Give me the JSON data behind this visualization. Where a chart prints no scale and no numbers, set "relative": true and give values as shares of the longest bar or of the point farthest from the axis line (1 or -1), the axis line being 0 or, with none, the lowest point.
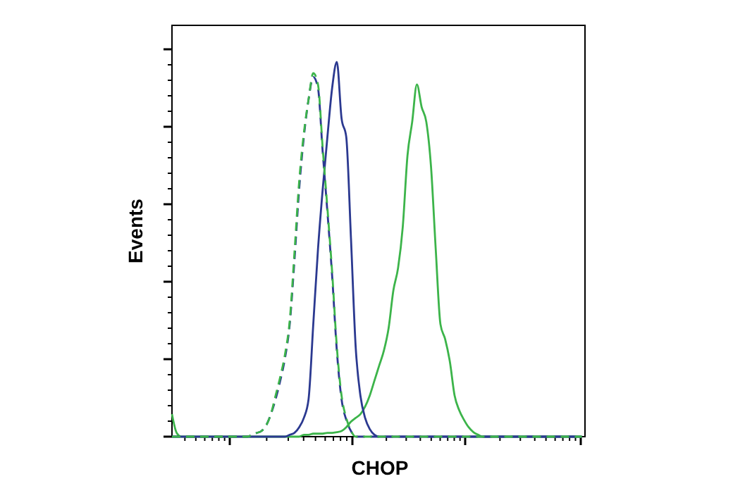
{
  "chart_data": {
    "type": "line",
    "relative": true,
    "xlabel": "CHOP",
    "ylabel": "Events",
    "line_style": "solid",
    "categories": [
      null,
      null,
      null,
      null,
      null,
      null,
      null,
      null,
      null,
      null,
      null,
      null,
      null,
      null,
      null,
      null,
      null,
      null,
      null,
      null,
      null,
      null,
      null,
      null,
      null,
      null,
      null,
      null,
      null,
      null,
      null,
      null,
      null,
      null,
      null,
      null,
      null,
      null,
      null,
      null,
      null,
      null,
      null,
      null,
      null,
      null,
      null,
      null,
      null,
      null,
      null,
      null,
      null,
      null,
      null,
      null,
      null,
      null,
      null,
      null,
      null,
      null,
      null,
      null,
      null,
      null,
      null,
      null,
      null,
      null,
      null,
      null,
      null,
      null,
      null,
      null,
      null,
      null,
      null,
      null,
      null,
      null,
      null,
      null,
      null,
      null,
      null,
      null
    ],
    "series": [
      {
        "color": "#3cb44a",
        "values": [
          0.06,
          0.01,
          0,
          0,
          0,
          0,
          0,
          0,
          0,
          0,
          0,
          0,
          0,
          0,
          0,
          0,
          0,
          0,
          0,
          0,
          0,
          0,
          0,
          0,
          0,
          0,
          0,
          0,
          0.005,
          0.005,
          0.008,
          0.008,
          0.008,
          0.01,
          0.01,
          0.012,
          0.015,
          0.025,
          0.04,
          0.05,
          0.06,
          0.08,
          0.11,
          0.15,
          0.19,
          0.23,
          0.29,
          0.39,
          0.45,
          0.56,
          0.75,
          0.84,
          0.94,
          0.88,
          0.84,
          0.72,
          0.5,
          0.3,
          0.26,
          0.2,
          0.11,
          0.07,
          0.045,
          0.025,
          0.012,
          0.005,
          0,
          0,
          0,
          0,
          0,
          0,
          0,
          0,
          0,
          0,
          0,
          0,
          0,
          0,
          0,
          0,
          0,
          0,
          0,
          0,
          0,
          0
        ]
      },
      {
        "color": "#2b3990",
        "values": [
          0,
          0,
          0,
          0,
          0,
          0,
          0,
          0,
          0,
          0,
          0,
          0,
          0,
          0,
          0,
          0,
          0,
          0,
          0,
          0,
          0,
          0,
          0,
          0,
          0,
          0.005,
          0.01,
          0.025,
          0.05,
          0.1,
          0.3,
          0.5,
          0.66,
          0.8,
          0.93,
          1,
          0.85,
          0.8,
          0.53,
          0.24,
          0.11,
          0.05,
          0.02,
          0.005,
          0,
          0,
          0,
          0,
          0,
          0,
          0,
          0,
          0,
          0,
          0,
          0,
          0,
          0,
          0,
          0,
          0,
          0,
          0,
          0,
          0,
          0,
          0,
          0,
          0,
          0,
          0,
          0,
          0,
          0,
          0,
          0,
          0,
          0,
          0,
          0,
          0,
          0,
          0,
          0,
          0,
          0,
          0,
          0
        ]
      },
      {
        "color": "#2b3990",
        "line_style": "dashed",
        "values": [
          0,
          0,
          0,
          0,
          0,
          0,
          0,
          0,
          0,
          0,
          0,
          0,
          0,
          0,
          0,
          0,
          0,
          0.005,
          0.01,
          0.015,
          0.03,
          0.06,
          0.1,
          0.15,
          0.21,
          0.3,
          0.47,
          0.66,
          0.8,
          0.9,
          0.96,
          0.93,
          0.76,
          0.6,
          0.43,
          0.23,
          0.1,
          0.045,
          0.015,
          0,
          0,
          0,
          0,
          0,
          0,
          0,
          0,
          0,
          0,
          0,
          0,
          0,
          0,
          0,
          0,
          0,
          0,
          0,
          0,
          0,
          0,
          0,
          0,
          0,
          0,
          0,
          0,
          0,
          0,
          0,
          0,
          0,
          0,
          0,
          0,
          0,
          0,
          0,
          0,
          0,
          0,
          0,
          0,
          0,
          0,
          0,
          0,
          0
        ]
      },
      {
        "color": "#3cb44a",
        "line_style": "dashed",
        "values": [
          0,
          0,
          0,
          0,
          0,
          0,
          0,
          0,
          0,
          0,
          0,
          0,
          0,
          0,
          0,
          0,
          0,
          0.005,
          0.01,
          0.015,
          0.03,
          0.06,
          0.11,
          0.16,
          0.22,
          0.31,
          0.49,
          0.68,
          0.81,
          0.9,
          0.97,
          0.94,
          0.77,
          0.61,
          0.44,
          0.24,
          0.11,
          0.05,
          0.016,
          0,
          0,
          0,
          0,
          0,
          0,
          0,
          0,
          0,
          0,
          0,
          0,
          0,
          0,
          0,
          0,
          0,
          0,
          0,
          0,
          0,
          0,
          0,
          0,
          0,
          0,
          0,
          0,
          0,
          0,
          0,
          0,
          0,
          0,
          0,
          0,
          0,
          0,
          0,
          0,
          0,
          0,
          0,
          0,
          0,
          0,
          0,
          0,
          0
        ]
      }
    ]
  }
}
